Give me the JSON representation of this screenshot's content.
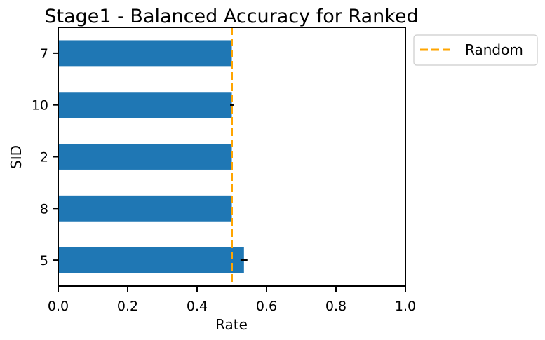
{
  "chart_data": {
    "type": "bar",
    "orientation": "horizontal",
    "title": "Stage1 - Balanced Accuracy for Ranked",
    "xlabel": "Rate",
    "ylabel": "SID",
    "xlim": [
      0,
      1
    ],
    "xticks": [
      0.0,
      0.2,
      0.4,
      0.6,
      0.8,
      1.0
    ],
    "xtick_labels": [
      "0.0",
      "0.2",
      "0.4",
      "0.6",
      "0.8",
      "1.0"
    ],
    "categories": [
      "7",
      "10",
      "2",
      "8",
      "5"
    ],
    "values": [
      0.5,
      0.5,
      0.5,
      0.5,
      0.535
    ],
    "errors": [
      0.0,
      0.005,
      0.0,
      0.003,
      0.01
    ],
    "grid": false,
    "bar_color": "#1f77b4",
    "reference_line": {
      "x": 0.5,
      "label": "Random",
      "color": "#ffa500",
      "style": "dashed"
    },
    "legend": {
      "placement": "outside-top-right",
      "entries": [
        "Random"
      ]
    }
  }
}
